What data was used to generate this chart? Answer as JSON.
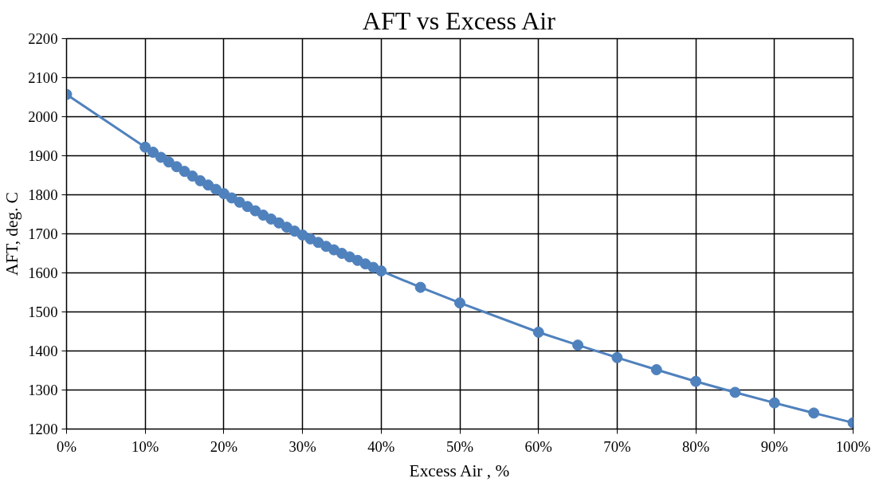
{
  "chart_data": {
    "type": "line",
    "title": "AFT vs Excess Air",
    "xlabel": "Excess Air , %",
    "ylabel": "AFT, deg. C",
    "x": [
      0,
      10,
      11,
      12,
      13,
      14,
      15,
      16,
      17,
      18,
      19,
      20,
      21,
      22,
      23,
      24,
      25,
      26,
      27,
      28,
      29,
      30,
      31,
      32,
      33,
      34,
      35,
      36,
      37,
      38,
      39,
      40,
      45,
      50,
      60,
      65,
      70,
      75,
      80,
      85,
      90,
      95,
      100
    ],
    "series": [
      {
        "color": "#4f81bd",
        "values": [
          2057,
          1922,
          1909,
          1896,
          1884,
          1872,
          1860,
          1848,
          1836,
          1825,
          1814,
          1803,
          1792,
          1781,
          1770,
          1759,
          1748,
          1738,
          1728,
          1717,
          1707,
          1697,
          1687,
          1678,
          1668,
          1659,
          1650,
          1641,
          1632,
          1623,
          1614,
          1605,
          1563,
          1523,
          1448,
          1415,
          1383,
          1352,
          1322,
          1294,
          1267,
          1241,
          1216
        ]
      }
    ],
    "xlim": [
      0,
      100
    ],
    "xticks": [
      {
        "value": 0,
        "label": "0%"
      },
      {
        "value": 10,
        "label": "10%"
      },
      {
        "value": 20,
        "label": "20%"
      },
      {
        "value": 30,
        "label": "30%"
      },
      {
        "value": 40,
        "label": "40%"
      },
      {
        "value": 50,
        "label": "50%"
      },
      {
        "value": 60,
        "label": "60%"
      },
      {
        "value": 70,
        "label": "70%"
      },
      {
        "value": 80,
        "label": "80%"
      },
      {
        "value": 90,
        "label": "90%"
      },
      {
        "value": 100,
        "label": "100%"
      }
    ],
    "ylim": [
      1200,
      2200
    ],
    "yticks": [
      1200,
      1300,
      1400,
      1500,
      1600,
      1700,
      1800,
      1900,
      2000,
      2100,
      2200
    ],
    "grid": true,
    "marker": "circle",
    "line_style": "solid"
  }
}
